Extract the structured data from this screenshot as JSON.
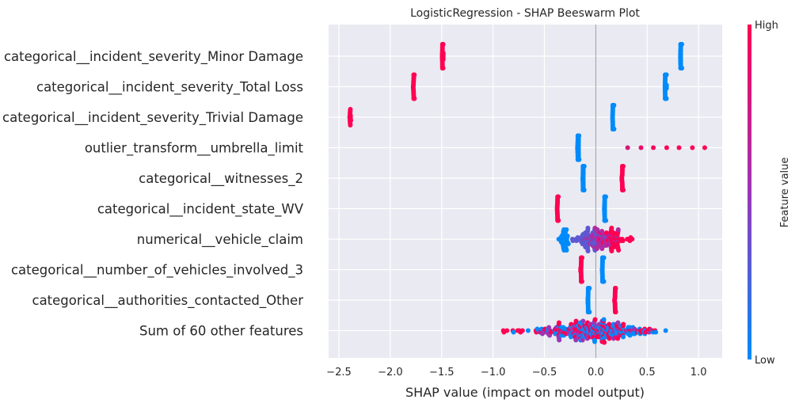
{
  "chart_data": {
    "type": "scatter",
    "subtype": "shap-beeswarm",
    "title": "LogisticRegression - SHAP Beeswarm Plot",
    "xlabel": "SHAP value (impact on model output)",
    "xlim": [
      -2.6,
      1.23
    ],
    "x_ticks": [
      -2.5,
      -2.0,
      -1.5,
      -1.0,
      -0.5,
      0.0,
      0.5,
      1.0
    ],
    "x_tick_labels": [
      "−2.5",
      "−2.0",
      "−1.5",
      "−1.0",
      "−0.5",
      "0.0",
      "0.5",
      "1.0"
    ],
    "grid": true,
    "colorbar": {
      "label": "Feature value",
      "high_label": "High",
      "low_label": "Low",
      "low_color": "#008bfb",
      "mid_color": "#9b36b6",
      "high_color": "#ff0052"
    },
    "colors": {
      "background": "#eaeaf2",
      "grid": "#ffffff",
      "zero_line": "#999999",
      "text": "#262626"
    },
    "features": [
      {
        "name": "categorical__incident_severity_Minor Damage",
        "groups": [
          {
            "x": 0.83,
            "value": 0.0,
            "n": 140,
            "spread": 0.003
          },
          {
            "x": -1.49,
            "value": 1.0,
            "n": 50,
            "spread": 0.003
          }
        ]
      },
      {
        "name": "categorical__incident_severity_Total Loss",
        "groups": [
          {
            "x": 0.68,
            "value": 0.0,
            "n": 140,
            "spread": 0.003
          },
          {
            "x": -1.77,
            "value": 1.0,
            "n": 40,
            "spread": 0.003
          }
        ]
      },
      {
        "name": "categorical__incident_severity_Trivial Damage",
        "groups": [
          {
            "x": 0.17,
            "value": 0.0,
            "n": 140,
            "spread": 0.003
          },
          {
            "x": -2.39,
            "value": 1.0,
            "n": 15,
            "spread": 0.003
          }
        ]
      },
      {
        "name": "outlier_transform__umbrella_limit",
        "groups": [
          {
            "x": -0.17,
            "value": 0.0,
            "n": 150,
            "spread": 0.003
          }
        ],
        "points": [
          {
            "x": 0.31,
            "value": 0.8
          },
          {
            "x": 0.44,
            "value": 0.9
          },
          {
            "x": 0.56,
            "value": 0.95
          },
          {
            "x": 0.69,
            "value": 1.0
          },
          {
            "x": 0.81,
            "value": 1.0
          },
          {
            "x": 0.94,
            "value": 1.0
          },
          {
            "x": 1.06,
            "value": 1.0
          }
        ]
      },
      {
        "name": "categorical__witnesses_2",
        "groups": [
          {
            "x": -0.12,
            "value": 0.0,
            "n": 140,
            "spread": 0.003
          },
          {
            "x": 0.26,
            "value": 1.0,
            "n": 40,
            "spread": 0.003
          }
        ]
      },
      {
        "name": "categorical__incident_state_WV",
        "groups": [
          {
            "x": 0.09,
            "value": 0.0,
            "n": 140,
            "spread": 0.003
          },
          {
            "x": -0.37,
            "value": 1.0,
            "n": 40,
            "spread": 0.003
          }
        ]
      },
      {
        "name": "numerical__vehicle_claim",
        "groups": [
          {
            "x": -0.31,
            "value": 0.0,
            "n": 40,
            "spread": 0.02
          },
          {
            "x": -0.08,
            "value": 0.3,
            "n": 60,
            "spread": 0.07
          },
          {
            "x": 0.05,
            "value": 0.6,
            "n": 70,
            "spread": 0.07
          },
          {
            "x": 0.18,
            "value": 1.0,
            "n": 50,
            "spread": 0.07
          }
        ]
      },
      {
        "name": "categorical__number_of_vehicles_involved_3",
        "groups": [
          {
            "x": 0.07,
            "value": 0.0,
            "n": 140,
            "spread": 0.003
          },
          {
            "x": -0.14,
            "value": 1.0,
            "n": 40,
            "spread": 0.003
          }
        ]
      },
      {
        "name": "categorical__authorities_contacted_Other",
        "groups": [
          {
            "x": -0.07,
            "value": 0.0,
            "n": 140,
            "spread": 0.003
          },
          {
            "x": 0.19,
            "value": 1.0,
            "n": 30,
            "spread": 0.003
          }
        ]
      },
      {
        "name": "Sum of 60 other features",
        "groups": [
          {
            "x": 0.0,
            "value": 0.0,
            "n": 130,
            "spread": 0.28
          },
          {
            "x": -0.05,
            "value": 0.5,
            "n": 90,
            "spread": 0.25
          },
          {
            "x": -0.1,
            "value": 1.0,
            "n": 120,
            "spread": 0.3
          }
        ],
        "points": [
          {
            "x": -0.9,
            "value": 1.0
          },
          {
            "x": -0.76,
            "value": 1.0
          },
          {
            "x": 0.68,
            "value": 0.0
          }
        ]
      }
    ]
  }
}
